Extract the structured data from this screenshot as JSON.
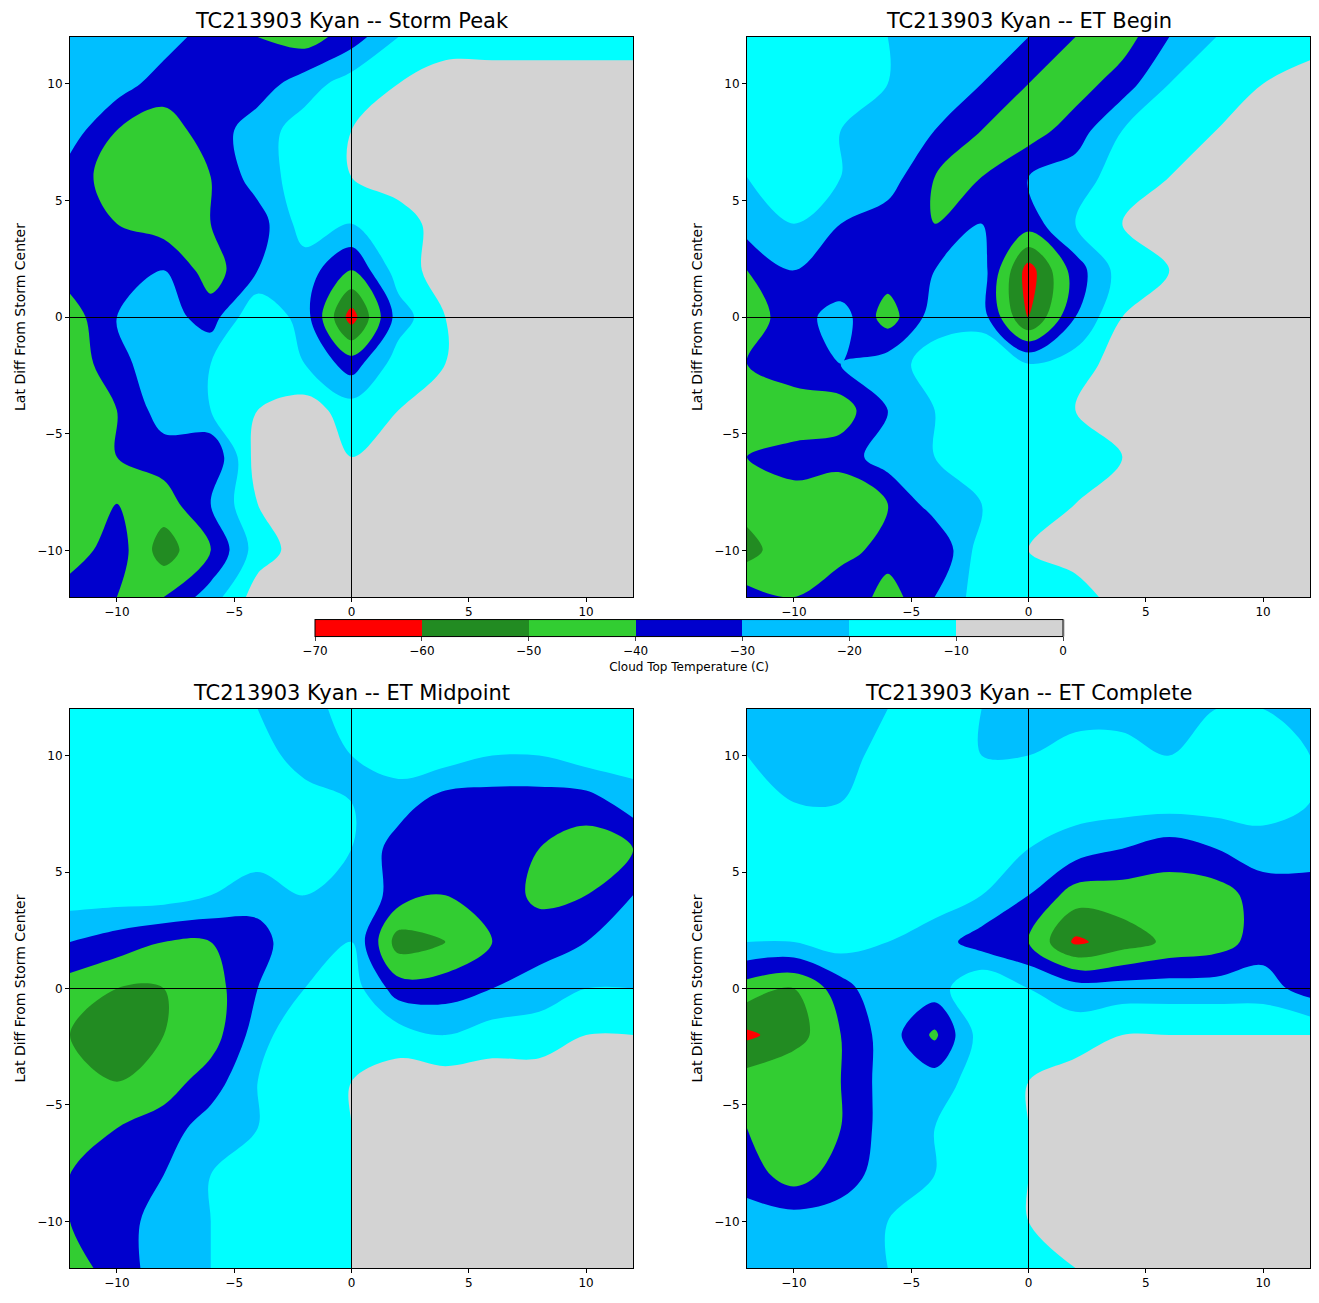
{
  "chart_data": [
    {
      "type": "contour",
      "title": "TC213903 Kyan -- Storm Peak",
      "ylabel": "Lat Diff From Storm Center",
      "colorbar_label": "Cloud Top Temperature (C)",
      "x": [
        -12,
        -10,
        -8,
        -6,
        -4,
        -2,
        0,
        2,
        4,
        6,
        8,
        10,
        12
      ],
      "y": [
        -12,
        -10,
        -8,
        -6,
        -4,
        -2,
        0,
        2,
        4,
        6,
        8,
        10,
        12
      ],
      "z": [
        [
          -35,
          -40,
          -40,
          -25,
          -5,
          -5,
          -5,
          -5,
          -5,
          -5,
          -5,
          -5,
          -5
        ],
        [
          -45,
          -35,
          -55,
          -40,
          -15,
          -5,
          -5,
          -5,
          -5,
          -5,
          -10,
          -5,
          -5
        ],
        [
          -50,
          -40,
          -45,
          -30,
          -10,
          -5,
          -5,
          -5,
          -5,
          -5,
          -5,
          -5,
          -5
        ],
        [
          -50,
          -40,
          -35,
          -40,
          -5,
          -5,
          -10,
          -5,
          -5,
          -5,
          -5,
          -5,
          -5
        ],
        [
          -50,
          -40,
          -25,
          -20,
          -10,
          -5,
          -15,
          -10,
          -5,
          -5,
          -5,
          -5,
          -5
        ],
        [
          -45,
          -35,
          -20,
          -20,
          -10,
          -20,
          -35,
          -15,
          -10,
          -5,
          -5,
          -5,
          -5
        ],
        [
          -45,
          -30,
          -25,
          -35,
          -10,
          -25,
          -65,
          -25,
          -10,
          -5,
          -5,
          -5,
          -5
        ],
        [
          -35,
          -30,
          -30,
          -45,
          -30,
          -25,
          -40,
          -15,
          -5,
          -5,
          -5,
          -5,
          -5
        ],
        [
          -35,
          -40,
          -45,
          -40,
          -35,
          -15,
          -20,
          -15,
          -5,
          -5,
          -5,
          -5,
          -5
        ],
        [
          -35,
          -45,
          -45,
          -40,
          -25,
          -15,
          -10,
          -5,
          -5,
          -5,
          -5,
          -5,
          -5
        ],
        [
          -25,
          -40,
          -45,
          -35,
          -25,
          -15,
          -10,
          -5,
          -5,
          -5,
          -5,
          -5,
          -5
        ],
        [
          -20,
          -25,
          -35,
          -40,
          -35,
          -25,
          -15,
          -10,
          -5,
          -5,
          -5,
          -5,
          -5
        ],
        [
          -25,
          -30,
          -25,
          -35,
          -40,
          -45,
          -35,
          -20,
          -15,
          -15,
          -15,
          -15,
          -15
        ]
      ],
      "xlim": [
        -12,
        12
      ],
      "ylim": [
        -12,
        12
      ],
      "xticks": [
        -10,
        -5,
        0,
        5,
        10
      ],
      "yticks": [
        -10,
        -5,
        0,
        5,
        10
      ],
      "zlim": [
        -70,
        0
      ],
      "zticks": [
        -70,
        -60,
        -50,
        -40,
        -30,
        -20,
        -10,
        0
      ],
      "colors": [
        "#ff0000",
        "#228b22",
        "#32cd32",
        "#0000cd",
        "#00bfff",
        "#00ffff",
        "#d3d3d3"
      ]
    },
    {
      "type": "contour",
      "title": "TC213903 Kyan -- ET Begin",
      "ylabel": "Lat Diff From Storm Center",
      "x": [
        -12,
        -10,
        -8,
        -6,
        -4,
        -2,
        0,
        2,
        4,
        6,
        8,
        10,
        12
      ],
      "y": [
        -12,
        -10,
        -8,
        -6,
        -4,
        -2,
        0,
        2,
        4,
        6,
        8,
        10,
        12
      ],
      "z": [
        [
          -35,
          -40,
          -30,
          -45,
          -30,
          -15,
          -15,
          -15,
          -5,
          -5,
          -5,
          -5,
          -5
        ],
        [
          -55,
          -40,
          -45,
          -35,
          -40,
          -15,
          -10,
          -5,
          -5,
          -5,
          -5,
          -5,
          -5
        ],
        [
          -45,
          -45,
          -50,
          -40,
          -25,
          -20,
          -15,
          -10,
          -5,
          -5,
          -5,
          -5,
          -5
        ],
        [
          -40,
          -35,
          -35,
          -25,
          -20,
          -15,
          -15,
          -15,
          -10,
          -5,
          -5,
          -5,
          -5
        ],
        [
          -45,
          -50,
          -45,
          -30,
          -20,
          -15,
          -15,
          -10,
          -5,
          -5,
          -5,
          -5,
          -5
        ],
        [
          -40,
          -30,
          -30,
          -25,
          -15,
          -10,
          -20,
          -15,
          -5,
          -5,
          -5,
          -5,
          -5
        ],
        [
          -45,
          -35,
          -25,
          -45,
          -25,
          -25,
          -62,
          -30,
          -10,
          -5,
          -5,
          -5,
          -5
        ],
        [
          -40,
          -30,
          -40,
          -35,
          -30,
          -25,
          -65,
          -35,
          -15,
          -10,
          -5,
          -5,
          -5
        ],
        [
          -25,
          -20,
          -30,
          -35,
          -40,
          -30,
          -35,
          -20,
          -10,
          -5,
          -5,
          -5,
          -5
        ],
        [
          -20,
          -15,
          -20,
          -25,
          -40,
          -40,
          -30,
          -25,
          -15,
          -10,
          -5,
          -5,
          -5
        ],
        [
          -15,
          -15,
          -20,
          -20,
          -30,
          -40,
          -45,
          -35,
          -20,
          -15,
          -10,
          -5,
          -5
        ],
        [
          -15,
          -20,
          -15,
          -20,
          -25,
          -30,
          -40,
          -45,
          -35,
          -20,
          -15,
          -10,
          -5
        ],
        [
          -15,
          -15,
          -15,
          -20,
          -20,
          -25,
          -30,
          -40,
          -45,
          -30,
          -20,
          -15,
          -15
        ]
      ],
      "xlim": [
        -12,
        12
      ],
      "ylim": [
        -12,
        12
      ],
      "xticks": [
        -10,
        -5,
        0,
        5,
        10
      ],
      "yticks": [
        -10,
        -5,
        0,
        5,
        10
      ],
      "zlim": [
        -70,
        0
      ],
      "zticks": [
        -70,
        -60,
        -50,
        -40,
        -30,
        -20,
        -10,
        0
      ],
      "colors": [
        "#ff0000",
        "#228b22",
        "#32cd32",
        "#0000cd",
        "#00bfff",
        "#00ffff",
        "#d3d3d3"
      ]
    },
    {
      "type": "contour",
      "title": "TC213903 Kyan -- ET Midpoint",
      "ylabel": "Lat Diff From Storm Center",
      "x": [
        -12,
        -10,
        -8,
        -6,
        -4,
        -2,
        0,
        2,
        4,
        6,
        8,
        10,
        12
      ],
      "y": [
        -12,
        -10,
        -8,
        -6,
        -4,
        -2,
        0,
        2,
        4,
        6,
        8,
        10,
        12
      ],
      "z": [
        [
          -45,
          -35,
          -25,
          -20,
          -15,
          -10,
          -10,
          -5,
          -5,
          -5,
          -5,
          -5,
          -5
        ],
        [
          -40,
          -35,
          -25,
          -20,
          -15,
          -10,
          -10,
          -5,
          -5,
          -5,
          -5,
          -5,
          -5
        ],
        [
          -40,
          -35,
          -30,
          -20,
          -15,
          -15,
          -10,
          -5,
          -5,
          -5,
          -5,
          -5,
          -5
        ],
        [
          -40,
          -40,
          -35,
          -25,
          -20,
          -15,
          -10,
          -5,
          -5,
          -5,
          -5,
          -5,
          -5
        ],
        [
          -45,
          -50,
          -45,
          -35,
          -20,
          -15,
          -10,
          -5,
          -5,
          -5,
          -5,
          -5,
          -5
        ],
        [
          -50,
          -55,
          -50,
          -45,
          -25,
          -10,
          -15,
          -15,
          -20,
          -15,
          -15,
          -10,
          -10
        ],
        [
          -45,
          -50,
          -50,
          -45,
          -30,
          -20,
          -15,
          -35,
          -35,
          -30,
          -25,
          -20,
          -20
        ],
        [
          -30,
          -35,
          -40,
          -40,
          -35,
          -20,
          -20,
          -55,
          -50,
          -40,
          -35,
          -30,
          -25
        ],
        [
          -15,
          -15,
          -15,
          -20,
          -25,
          -20,
          -20,
          -35,
          -40,
          -35,
          -42,
          -40,
          -30
        ],
        [
          -15,
          -15,
          -15,
          -15,
          -15,
          -15,
          -20,
          -35,
          -35,
          -38,
          -40,
          -45,
          -40
        ],
        [
          -10,
          -15,
          -15,
          -15,
          -15,
          -15,
          -20,
          -25,
          -35,
          -35,
          -35,
          -35,
          -25
        ],
        [
          -15,
          -15,
          -15,
          -15,
          -15,
          -25,
          -20,
          -15,
          -15,
          -20,
          -20,
          -15,
          -15
        ],
        [
          -15,
          -15,
          -15,
          -15,
          -20,
          -25,
          -15,
          -15,
          -15,
          -15,
          -15,
          -15,
          -15
        ]
      ],
      "xlim": [
        -12,
        12
      ],
      "ylim": [
        -12,
        12
      ],
      "xticks": [
        -10,
        -5,
        0,
        5,
        10
      ],
      "yticks": [
        -10,
        -5,
        0,
        5,
        10
      ],
      "zlim": [
        -70,
        0
      ],
      "zticks": [
        -70,
        -60,
        -50,
        -40,
        -30,
        -20,
        -10,
        0
      ],
      "colors": [
        "#ff0000",
        "#228b22",
        "#32cd32",
        "#0000cd",
        "#00bfff",
        "#00ffff",
        "#d3d3d3"
      ]
    },
    {
      "type": "contour",
      "title": "TC213903 Kyan -- ET Complete",
      "ylabel": "Lat Diff From Storm Center",
      "x": [
        -12,
        -10,
        -8,
        -6,
        -4,
        -2,
        0,
        2,
        4,
        6,
        8,
        10,
        12
      ],
      "y": [
        -12,
        -10,
        -8,
        -6,
        -4,
        -2,
        0,
        2,
        4,
        6,
        8,
        10,
        12
      ],
      "z": [
        [
          -25,
          -25,
          -25,
          -20,
          -15,
          -15,
          -10,
          -10,
          -5,
          -5,
          -5,
          -5,
          -5
        ],
        [
          -25,
          -25,
          -25,
          -20,
          -15,
          -15,
          -10,
          -5,
          -5,
          -5,
          -5,
          -5,
          -5
        ],
        [
          -35,
          -45,
          -35,
          -25,
          -20,
          -15,
          -10,
          -5,
          -5,
          -5,
          -5,
          -5,
          -5
        ],
        [
          -40,
          -45,
          -40,
          -25,
          -20,
          -15,
          -10,
          -5,
          -5,
          -5,
          -5,
          -5,
          -5
        ],
        [
          -45,
          -40,
          -40,
          -25,
          -25,
          -15,
          -10,
          -5,
          -5,
          -5,
          -5,
          -5,
          -5
        ],
        [
          -62,
          -55,
          -40,
          -25,
          -42,
          -15,
          -15,
          -15,
          -10,
          -10,
          -10,
          -10,
          -10
        ],
        [
          -45,
          -50,
          -35,
          -20,
          -25,
          -10,
          -20,
          -25,
          -25,
          -25,
          -25,
          -25,
          -35
        ],
        [
          -20,
          -20,
          -15,
          -20,
          -25,
          -35,
          -40,
          -62,
          -55,
          -48,
          -45,
          -35,
          -30
        ],
        [
          -15,
          -15,
          -15,
          -15,
          -15,
          -20,
          -30,
          -45,
          -45,
          -45,
          -45,
          -35,
          -35
        ],
        [
          -15,
          -15,
          -15,
          -15,
          -15,
          -15,
          -20,
          -25,
          -30,
          -35,
          -30,
          -25,
          -25
        ],
        [
          -15,
          -20,
          -20,
          -15,
          -15,
          -15,
          -15,
          -15,
          -15,
          -15,
          -15,
          -15,
          -20
        ],
        [
          -20,
          -25,
          -25,
          -15,
          -15,
          -20,
          -20,
          -15,
          -15,
          -20,
          -15,
          -15,
          -20
        ],
        [
          -20,
          -25,
          -25,
          -20,
          -15,
          -20,
          -20,
          -25,
          -25,
          -20,
          -20,
          -20,
          -25
        ]
      ],
      "xlim": [
        -12,
        12
      ],
      "ylim": [
        -12,
        12
      ],
      "xticks": [
        -10,
        -5,
        0,
        5,
        10
      ],
      "yticks": [
        -10,
        -5,
        0,
        5,
        10
      ],
      "zlim": [
        -70,
        0
      ],
      "zticks": [
        -70,
        -60,
        -50,
        -40,
        -30,
        -20,
        -10,
        0
      ],
      "colors": [
        "#ff0000",
        "#228b22",
        "#32cd32",
        "#0000cd",
        "#00bfff",
        "#00ffff",
        "#d3d3d3"
      ]
    }
  ]
}
